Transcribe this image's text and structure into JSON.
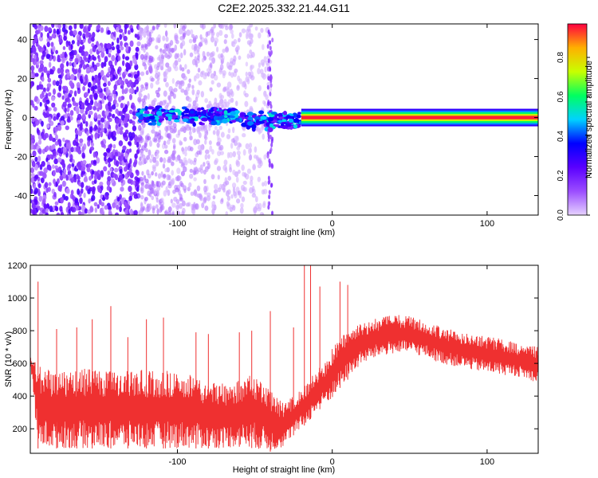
{
  "title": "C2E2.2025.332.21.44.G11",
  "chart_data": [
    {
      "type": "heatmap",
      "title": "C2E2.2025.332.21.44.G11",
      "xlabel": "Height of straight line (km)",
      "ylabel": "Frequency (Hz)",
      "xlim": [
        -195,
        133
      ],
      "ylim": [
        -50,
        48
      ],
      "xticks": [
        -100,
        0,
        100
      ],
      "yticks": [
        -40,
        -20,
        0,
        20,
        40
      ],
      "grid": false,
      "colorbar": {
        "label": "Normalized spectral amplitude",
        "range": [
          0.0,
          0.97
        ],
        "ticks": [
          0.0,
          0.2,
          0.4,
          0.6,
          0.8
        ],
        "colormap": [
          "#e6d2ff",
          "#9b4dff",
          "#5a00ff",
          "#0000ff",
          "#00d2ff",
          "#00ff60",
          "#c8ff00",
          "#ffb000",
          "#ff0040"
        ]
      },
      "features": [
        {
          "name": "broadband scattered returns",
          "x_range": [
            -195,
            -125
          ],
          "freq_range": [
            -50,
            48
          ],
          "amplitude": 0.15
        },
        {
          "name": "central band onset",
          "x_range": [
            -125,
            -20
          ],
          "freq_center": 0,
          "freq_halfwidth": 5,
          "amplitude": 0.35
        },
        {
          "name": "vertical stripe",
          "x": -40,
          "freq_range": [
            -50,
            48
          ],
          "amplitude": 0.1
        },
        {
          "name": "carrier line",
          "x_range": [
            -20,
            133
          ],
          "freq_center": 0,
          "freq_halfwidth": 1,
          "amplitude": 0.95
        }
      ]
    },
    {
      "type": "line",
      "xlabel": "Height of straight line (km)",
      "ylabel": "SNR (10 * v/v)",
      "xlim": [
        -195,
        133
      ],
      "ylim": [
        50,
        1200
      ],
      "xticks": [
        -100,
        0,
        100
      ],
      "yticks": [
        200,
        400,
        600,
        800,
        1000,
        1200
      ],
      "grid": false,
      "color": "#ef3030",
      "envelope": {
        "x": [
          -195,
          -190,
          -180,
          -170,
          -160,
          -150,
          -140,
          -130,
          -120,
          -110,
          -100,
          -90,
          -80,
          -70,
          -60,
          -50,
          -45,
          -40,
          -35,
          -30,
          -28,
          -25,
          -20,
          -15,
          -10,
          -5,
          0,
          5,
          10,
          15,
          20,
          30,
          40,
          50,
          60,
          70,
          80,
          90,
          100,
          110,
          120,
          133
        ],
        "low": [
          620,
          80,
          80,
          80,
          80,
          80,
          80,
          80,
          80,
          80,
          80,
          80,
          80,
          80,
          90,
          80,
          70,
          60,
          75,
          95,
          130,
          160,
          200,
          250,
          300,
          350,
          380,
          450,
          500,
          560,
          600,
          640,
          660,
          660,
          640,
          600,
          580,
          560,
          540,
          530,
          520,
          480
        ],
        "high": [
          640,
          600,
          560,
          560,
          570,
          560,
          560,
          560,
          560,
          550,
          570,
          540,
          480,
          480,
          500,
          540,
          500,
          440,
          380,
          360,
          380,
          400,
          440,
          500,
          560,
          600,
          700,
          760,
          800,
          830,
          850,
          880,
          900,
          890,
          860,
          830,
          800,
          780,
          770,
          750,
          720,
          700
        ]
      },
      "spikes": [
        {
          "x": -190,
          "y": 1100
        },
        {
          "x": -178,
          "y": 810
        },
        {
          "x": -165,
          "y": 820
        },
        {
          "x": -155,
          "y": 870
        },
        {
          "x": -143,
          "y": 950
        },
        {
          "x": -132,
          "y": 760
        },
        {
          "x": -120,
          "y": 870
        },
        {
          "x": -109,
          "y": 880
        },
        {
          "x": -88,
          "y": 790
        },
        {
          "x": -80,
          "y": 780
        },
        {
          "x": -60,
          "y": 790
        },
        {
          "x": -52,
          "y": 800
        },
        {
          "x": -40,
          "y": 920
        },
        {
          "x": -25,
          "y": 820
        },
        {
          "x": -18,
          "y": 1200
        },
        {
          "x": -14,
          "y": 1200
        },
        {
          "x": -8,
          "y": 1070
        },
        {
          "x": 5,
          "y": 1100
        },
        {
          "x": 10,
          "y": 1080
        }
      ]
    }
  ]
}
